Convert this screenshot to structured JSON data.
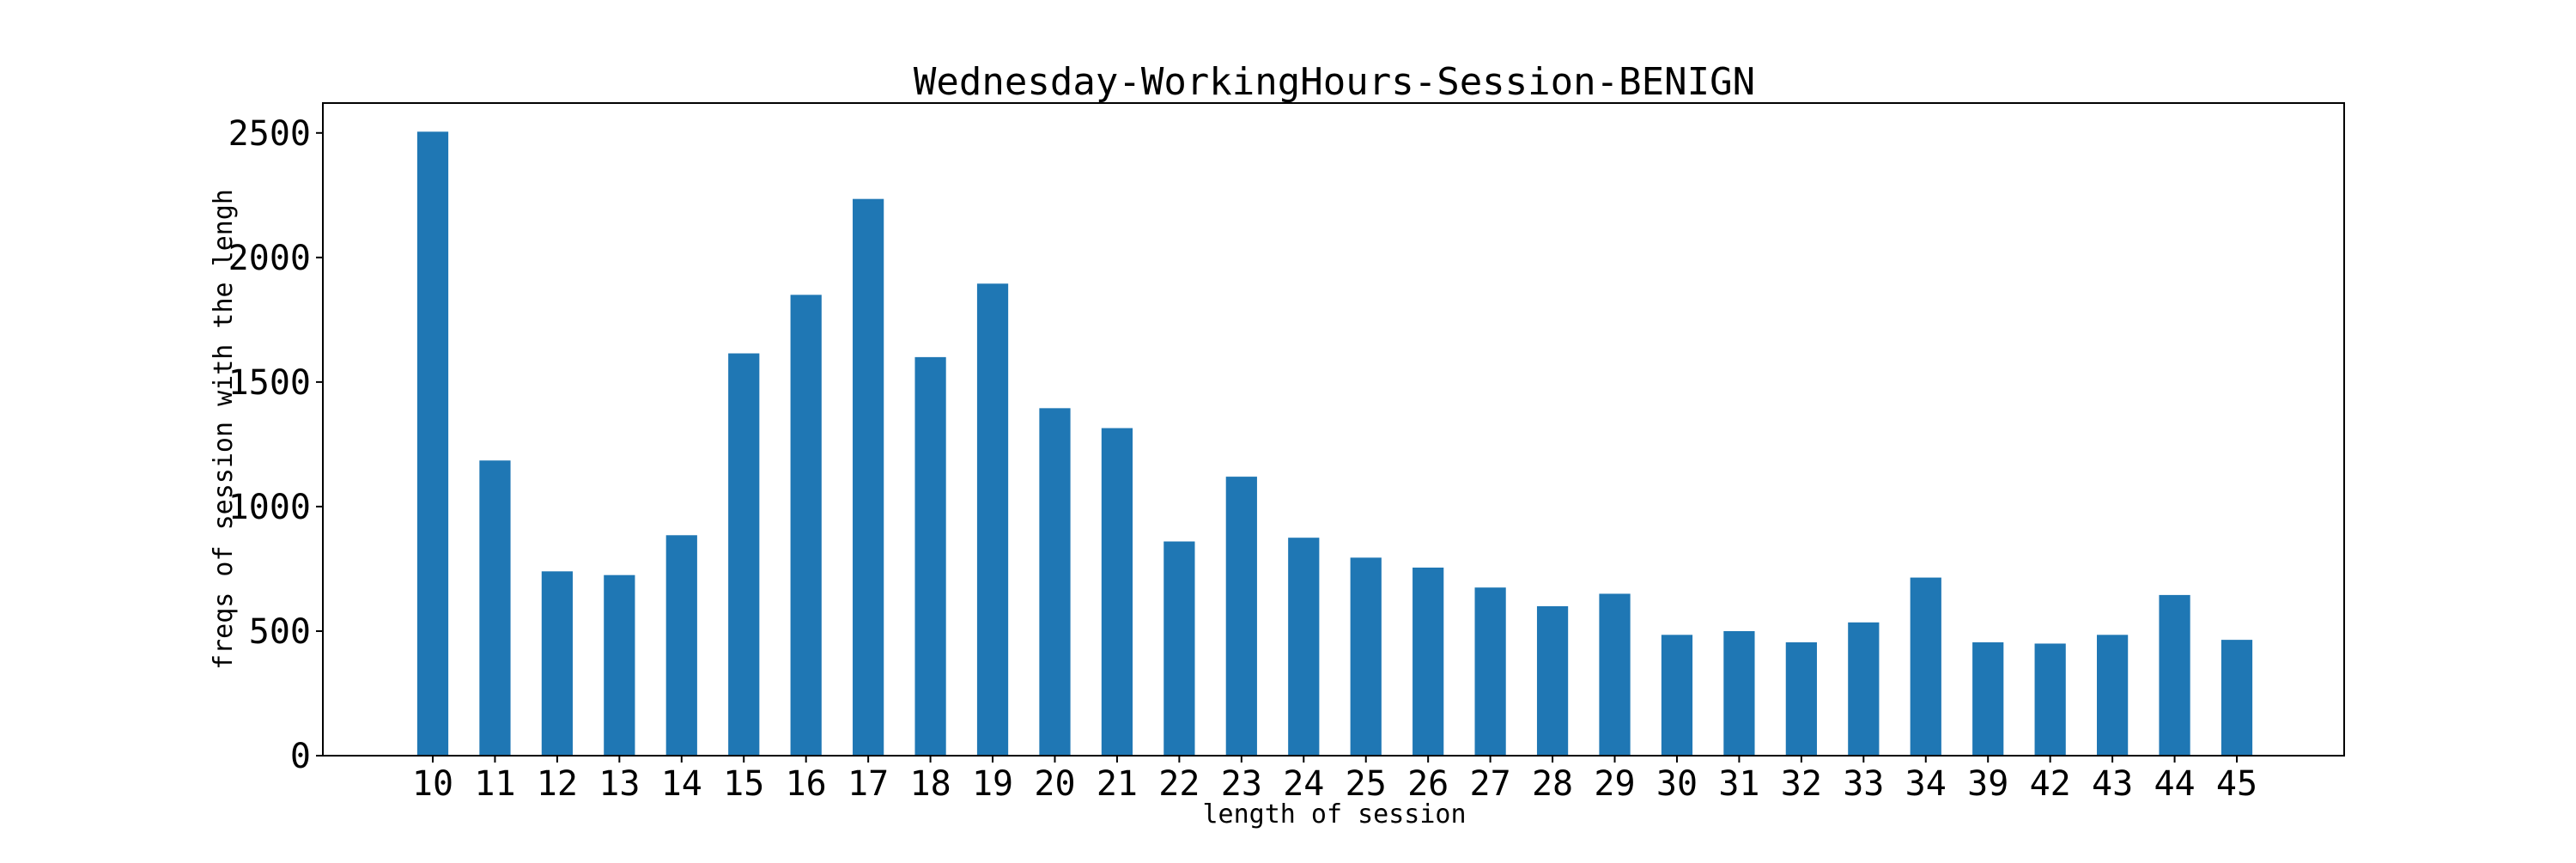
{
  "chart_data": {
    "type": "bar",
    "title": "Wednesday-WorkingHours-Session-BENIGN",
    "xlabel": "length of session",
    "ylabel": "freqs of session with the lengh",
    "categories": [
      "10",
      "11",
      "12",
      "13",
      "14",
      "15",
      "16",
      "17",
      "18",
      "19",
      "20",
      "21",
      "22",
      "23",
      "24",
      "25",
      "26",
      "27",
      "28",
      "29",
      "30",
      "31",
      "32",
      "33",
      "34",
      "39",
      "42",
      "43",
      "44",
      "45"
    ],
    "values": [
      2505,
      1185,
      740,
      725,
      885,
      1615,
      1850,
      2235,
      1600,
      1895,
      1395,
      1315,
      860,
      1120,
      875,
      795,
      755,
      675,
      600,
      650,
      485,
      500,
      455,
      535,
      715,
      455,
      450,
      485,
      645,
      465
    ],
    "ylim": [
      0,
      2620
    ],
    "yticks": [
      0,
      500,
      1000,
      1500,
      2000,
      2500
    ],
    "bar_color": "#1f77b4",
    "grid": false,
    "legend": false
  }
}
